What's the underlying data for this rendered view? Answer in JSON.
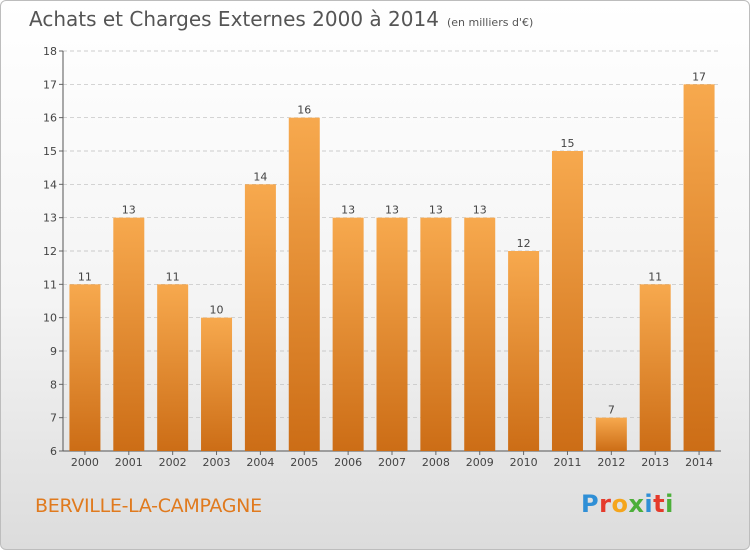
{
  "title": "Achats et Charges Externes 2000 à 2014",
  "subtitle": "(en milliers d'€)",
  "commune": "BERVILLE-LA-CAMPAGNE",
  "brand": "Proxiti",
  "colors": {
    "bar_light": "#f7a94e",
    "bar_dark": "#cc6d16",
    "grid": "#bdbdbd",
    "commune": "#e07a1e",
    "brand_letters": [
      "#2f8fd6",
      "#e53a2b",
      "#f5a51c",
      "#4caf3a",
      "#2f8fd6",
      "#e53a2b",
      "#4caf3a"
    ]
  },
  "chart_data": {
    "type": "bar",
    "title": "Achats et Charges Externes 2000 à 2014",
    "subtitle": "(en milliers d'€)",
    "xlabel": "",
    "ylabel": "",
    "categories": [
      "2000",
      "2001",
      "2002",
      "2003",
      "2004",
      "2005",
      "2006",
      "2007",
      "2008",
      "2009",
      "2010",
      "2011",
      "2012",
      "2013",
      "2014"
    ],
    "values": [
      11,
      13,
      11,
      10,
      14,
      16,
      13,
      13,
      13,
      13,
      12,
      15,
      7,
      11,
      17
    ],
    "ylim": [
      6,
      18
    ],
    "yticks": [
      6,
      7,
      8,
      9,
      10,
      11,
      12,
      13,
      14,
      15,
      16,
      17,
      18
    ],
    "grid": true,
    "data_labels": true
  }
}
